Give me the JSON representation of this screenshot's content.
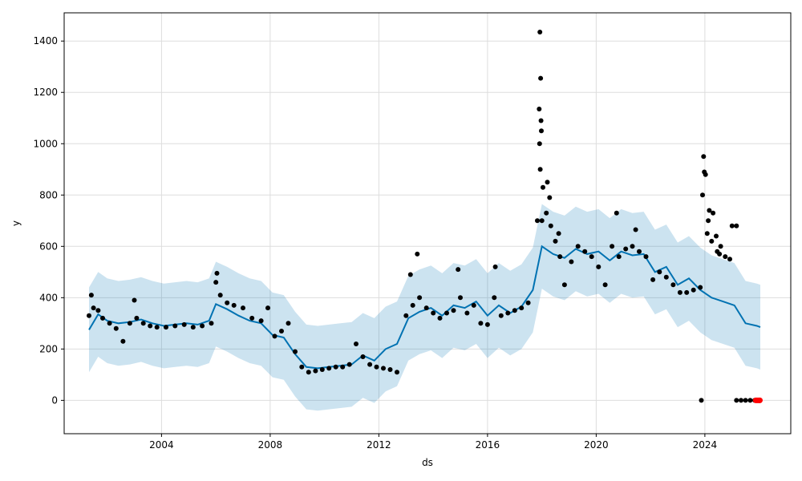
{
  "chart_data": {
    "type": "line",
    "title": "",
    "xlabel": "ds",
    "ylabel": "y",
    "xlim": [
      "2000-06-01",
      "2027-03-01"
    ],
    "ylim": [
      -130,
      1510
    ],
    "x_ticks": [
      "2004",
      "2008",
      "2012",
      "2016",
      "2020",
      "2024"
    ],
    "y_ticks": [
      0,
      200,
      400,
      600,
      800,
      1000,
      1200,
      1400
    ],
    "grid": true,
    "legend": "none",
    "colors": {
      "forecast_line": "#0072b2",
      "uncertainty_band": "#0072b2",
      "observed_points": "#000000",
      "highlight_points": "#ff0000",
      "grid": "#dddddd"
    },
    "series": [
      {
        "kind": "forecast_line",
        "points": [
          [
            "2001-05-01",
            275
          ],
          [
            "2001-09-01",
            335
          ],
          [
            "2002-01-01",
            310
          ],
          [
            "2002-06-01",
            300
          ],
          [
            "2002-11-01",
            305
          ],
          [
            "2003-04-01",
            315
          ],
          [
            "2003-09-01",
            300
          ],
          [
            "2004-02-01",
            290
          ],
          [
            "2004-07-01",
            295
          ],
          [
            "2004-12-01",
            300
          ],
          [
            "2005-05-01",
            295
          ],
          [
            "2005-10-01",
            310
          ],
          [
            "2006-01-01",
            375
          ],
          [
            "2006-06-01",
            355
          ],
          [
            "2006-11-01",
            330
          ],
          [
            "2007-04-01",
            310
          ],
          [
            "2007-09-01",
            300
          ],
          [
            "2008-02-01",
            255
          ],
          [
            "2008-07-01",
            245
          ],
          [
            "2008-12-01",
            180
          ],
          [
            "2009-05-01",
            130
          ],
          [
            "2009-10-01",
            125
          ],
          [
            "2010-03-01",
            130
          ],
          [
            "2010-08-01",
            135
          ],
          [
            "2011-01-01",
            140
          ],
          [
            "2011-06-01",
            175
          ],
          [
            "2011-11-01",
            155
          ],
          [
            "2012-04-01",
            200
          ],
          [
            "2012-09-01",
            220
          ],
          [
            "2013-02-01",
            320
          ],
          [
            "2013-07-01",
            345
          ],
          [
            "2013-12-01",
            360
          ],
          [
            "2014-05-01",
            330
          ],
          [
            "2014-10-01",
            370
          ],
          [
            "2015-03-01",
            360
          ],
          [
            "2015-08-01",
            385
          ],
          [
            "2016-01-01",
            330
          ],
          [
            "2016-06-01",
            370
          ],
          [
            "2016-11-01",
            340
          ],
          [
            "2017-04-01",
            365
          ],
          [
            "2017-09-01",
            430
          ],
          [
            "2018-01-01",
            600
          ],
          [
            "2018-06-01",
            570
          ],
          [
            "2018-11-01",
            555
          ],
          [
            "2019-04-01",
            590
          ],
          [
            "2019-09-01",
            570
          ],
          [
            "2020-02-01",
            580
          ],
          [
            "2020-07-01",
            545
          ],
          [
            "2020-12-01",
            580
          ],
          [
            "2021-05-01",
            565
          ],
          [
            "2021-10-01",
            570
          ],
          [
            "2022-03-01",
            500
          ],
          [
            "2022-08-01",
            520
          ],
          [
            "2023-01-01",
            450
          ],
          [
            "2023-06-01",
            475
          ],
          [
            "2023-11-01",
            430
          ],
          [
            "2024-04-01",
            400
          ],
          [
            "2024-09-01",
            385
          ],
          [
            "2025-02-01",
            370
          ],
          [
            "2025-07-01",
            300
          ],
          [
            "2025-12-01",
            290
          ],
          [
            "2026-01-15",
            285
          ]
        ]
      },
      {
        "kind": "uncertainty_band",
        "offset": 165
      },
      {
        "kind": "observed_points",
        "points": [
          [
            "2001-05-01",
            330
          ],
          [
            "2001-07-01",
            360
          ],
          [
            "2001-09-01",
            350
          ],
          [
            "2001-11-01",
            320
          ],
          [
            "2002-02-01",
            300
          ],
          [
            "2002-05-01",
            280
          ],
          [
            "2002-08-01",
            230
          ],
          [
            "2002-11-01",
            300
          ],
          [
            "2003-02-01",
            320
          ],
          [
            "2003-05-01",
            300
          ],
          [
            "2003-08-01",
            290
          ],
          [
            "2003-11-01",
            285
          ],
          [
            "2004-03-01",
            285
          ],
          [
            "2004-07-01",
            290
          ],
          [
            "2004-11-01",
            295
          ],
          [
            "2005-03-01",
            285
          ],
          [
            "2005-07-01",
            290
          ],
          [
            "2005-11-01",
            300
          ],
          [
            "2006-01-01",
            460
          ],
          [
            "2006-03-01",
            410
          ],
          [
            "2006-06-01",
            380
          ],
          [
            "2006-09-01",
            370
          ],
          [
            "2007-01-01",
            360
          ],
          [
            "2007-05-01",
            320
          ],
          [
            "2007-09-01",
            310
          ],
          [
            "2007-12-01",
            360
          ],
          [
            "2008-03-01",
            250
          ],
          [
            "2008-06-01",
            270
          ],
          [
            "2008-09-01",
            300
          ],
          [
            "2008-12-01",
            190
          ],
          [
            "2009-03-01",
            130
          ],
          [
            "2009-06-01",
            110
          ],
          [
            "2009-09-01",
            115
          ],
          [
            "2009-12-01",
            120
          ],
          [
            "2010-03-01",
            125
          ],
          [
            "2010-06-01",
            130
          ],
          [
            "2010-09-01",
            130
          ],
          [
            "2010-12-01",
            140
          ],
          [
            "2011-03-01",
            220
          ],
          [
            "2011-06-01",
            170
          ],
          [
            "2011-09-01",
            140
          ],
          [
            "2011-12-01",
            130
          ],
          [
            "2012-03-01",
            125
          ],
          [
            "2012-06-01",
            120
          ],
          [
            "2012-09-01",
            110
          ],
          [
            "2013-01-01",
            330
          ],
          [
            "2013-04-01",
            370
          ],
          [
            "2013-07-01",
            400
          ],
          [
            "2013-10-01",
            360
          ],
          [
            "2014-01-01",
            340
          ],
          [
            "2014-04-01",
            320
          ],
          [
            "2014-07-01",
            340
          ],
          [
            "2014-10-01",
            350
          ],
          [
            "2015-01-01",
            400
          ],
          [
            "2015-04-01",
            340
          ],
          [
            "2015-07-01",
            370
          ],
          [
            "2015-10-01",
            300
          ],
          [
            "2016-01-01",
            295
          ],
          [
            "2016-04-01",
            400
          ],
          [
            "2016-07-01",
            330
          ],
          [
            "2016-10-01",
            340
          ],
          [
            "2017-01-01",
            350
          ],
          [
            "2017-04-01",
            360
          ],
          [
            "2017-07-01",
            380
          ],
          [
            "2017-11-01",
            700
          ],
          [
            "2017-12-01",
            1000
          ],
          [
            "2018-01-01",
            700
          ],
          [
            "2018-03-01",
            730
          ],
          [
            "2018-05-01",
            680
          ],
          [
            "2018-07-01",
            620
          ],
          [
            "2018-09-01",
            560
          ],
          [
            "2018-11-01",
            450
          ],
          [
            "2019-02-01",
            540
          ],
          [
            "2019-05-01",
            600
          ],
          [
            "2019-08-01",
            580
          ],
          [
            "2019-11-01",
            560
          ],
          [
            "2020-02-01",
            520
          ],
          [
            "2020-05-01",
            450
          ],
          [
            "2020-08-01",
            600
          ],
          [
            "2020-11-01",
            560
          ],
          [
            "2021-02-01",
            590
          ],
          [
            "2021-05-01",
            600
          ],
          [
            "2021-08-01",
            580
          ],
          [
            "2021-11-01",
            560
          ],
          [
            "2022-02-01",
            470
          ],
          [
            "2022-05-01",
            500
          ],
          [
            "2022-08-01",
            480
          ],
          [
            "2022-11-01",
            450
          ],
          [
            "2023-02-01",
            420
          ],
          [
            "2023-05-01",
            420
          ],
          [
            "2023-08-01",
            430
          ],
          [
            "2023-11-01",
            440
          ],
          [
            "2023-12-01",
            800
          ],
          [
            "2024-02-01",
            650
          ],
          [
            "2024-04-01",
            620
          ],
          [
            "2024-06-01",
            640
          ],
          [
            "2024-08-01",
            600
          ],
          [
            "2024-10-01",
            560
          ],
          [
            "2024-12-01",
            550
          ],
          [
            "2025-01-01",
            680
          ],
          [
            "2025-03-01",
            680
          ],
          [
            "2023-11-15",
            0
          ],
          [
            "2025-03-01",
            0
          ],
          [
            "2025-05-01",
            0
          ],
          [
            "2025-07-01",
            0
          ],
          [
            "2025-09-01",
            0
          ],
          [
            "2025-11-01",
            0
          ],
          [
            "2001-06-01",
            410
          ],
          [
            "2003-01-01",
            390
          ],
          [
            "2006-01-15",
            495
          ],
          [
            "2013-06-01",
            570
          ],
          [
            "2013-03-01",
            490
          ],
          [
            "2014-12-01",
            510
          ],
          [
            "2016-04-15",
            520
          ],
          [
            "2017-12-05",
            1435
          ],
          [
            "2017-12-15",
            1255
          ],
          [
            "2017-11-25",
            1135
          ],
          [
            "2017-12-20",
            1090
          ],
          [
            "2017-12-25",
            1050
          ],
          [
            "2017-12-10",
            900
          ],
          [
            "2018-01-15",
            830
          ],
          [
            "2018-03-15",
            850
          ],
          [
            "2018-04-15",
            790
          ],
          [
            "2023-12-15",
            950
          ],
          [
            "2023-12-25",
            890
          ],
          [
            "2024-01-10",
            880
          ],
          [
            "2024-03-01",
            740
          ],
          [
            "2024-04-20",
            730
          ],
          [
            "2024-02-15",
            700
          ],
          [
            "2024-06-15",
            580
          ],
          [
            "2024-07-15",
            570
          ],
          [
            "2018-08-15",
            650
          ],
          [
            "2020-10-01",
            730
          ],
          [
            "2021-06-15",
            665
          ]
        ]
      },
      {
        "kind": "highlight_points",
        "points": [
          [
            "2025-11-15",
            0
          ],
          [
            "2025-12-01",
            0
          ],
          [
            "2025-12-15",
            0
          ],
          [
            "2026-01-01",
            0
          ],
          [
            "2026-01-10",
            0
          ]
        ]
      }
    ]
  }
}
